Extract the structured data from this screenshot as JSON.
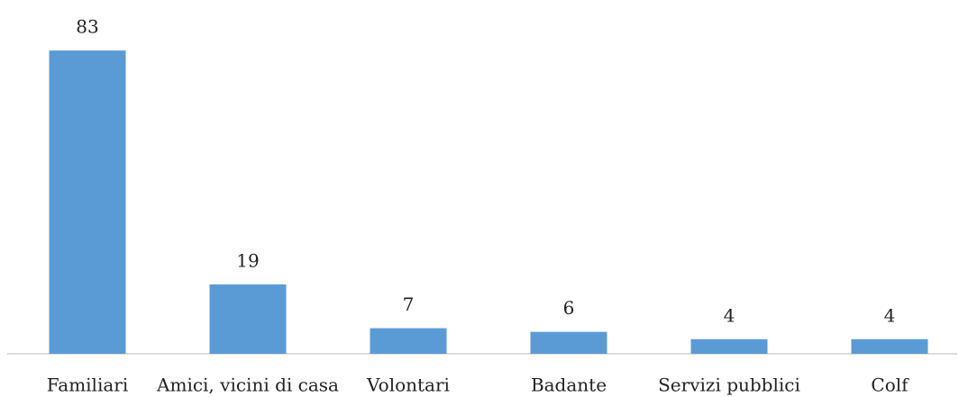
{
  "chart_data": {
    "type": "bar",
    "categories": [
      "Familiari",
      "Amici, vicini di casa",
      "Volontari",
      "Badante",
      "Servizi pubblici",
      "Colf"
    ],
    "values": [
      83,
      19,
      7,
      6,
      4,
      4
    ],
    "color": "#5b9bd5",
    "ylim": [
      0,
      85
    ]
  }
}
